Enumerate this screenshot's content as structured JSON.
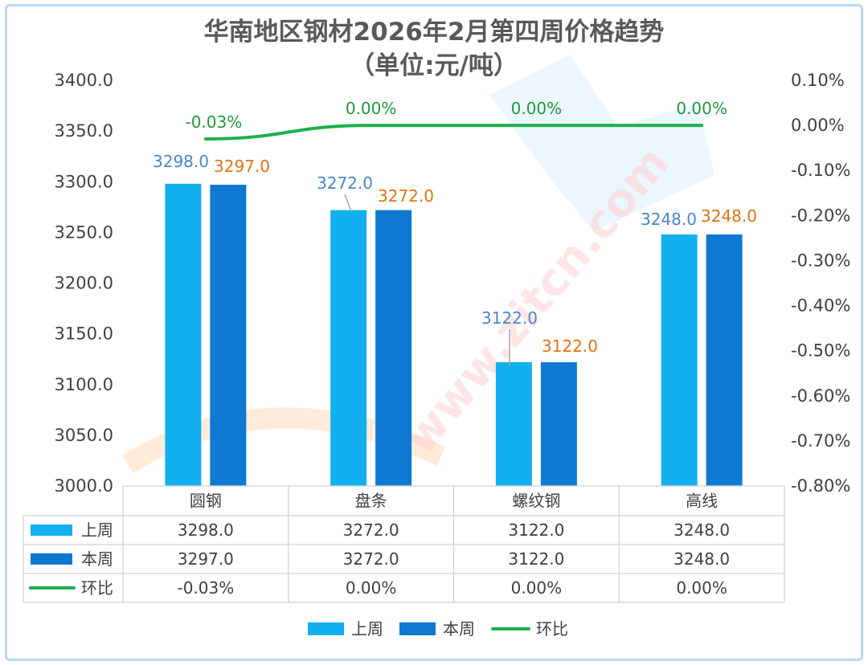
{
  "chart_data": {
    "type": "bar",
    "title": "华南地区钢材2026年2月第四周价格趋势",
    "subtitle": "（单位:元/吨）",
    "categories": [
      "圆钢",
      "盘条",
      "螺纹钢",
      "高线"
    ],
    "series": [
      {
        "name": "上周",
        "type": "bar",
        "axis": "left",
        "color": "#12b0ee",
        "values": [
          3298.0,
          3272.0,
          3122.0,
          3248.0
        ],
        "labels": [
          "3298.0",
          "3272.0",
          "3122.0",
          "3248.0"
        ]
      },
      {
        "name": "本周",
        "type": "bar",
        "axis": "left",
        "color": "#0f78d2",
        "values": [
          3297.0,
          3272.0,
          3122.0,
          3248.0
        ],
        "labels": [
          "3297.0",
          "3272.0",
          "3122.0",
          "3248.0"
        ]
      },
      {
        "name": "环比",
        "type": "line",
        "axis": "right",
        "color": "#1cb04a",
        "values": [
          -0.03,
          0.0,
          0.0,
          0.0
        ],
        "labels": [
          "-0.03%",
          "0.00%",
          "0.00%",
          "0.00%"
        ]
      }
    ],
    "y_left": {
      "min": 3000,
      "max": 3400,
      "ticks": [
        "3000.0",
        "3050.0",
        "3100.0",
        "3150.0",
        "3200.0",
        "3250.0",
        "3300.0",
        "3350.0",
        "3400.0"
      ]
    },
    "y_right": {
      "min": -0.8,
      "max": 0.1,
      "ticks": [
        "-0.80%",
        "-0.70%",
        "-0.60%",
        "-0.50%",
        "-0.40%",
        "-0.30%",
        "-0.20%",
        "-0.10%",
        "0.00%",
        "0.10%"
      ]
    },
    "data_table": true,
    "legend_position": "bottom",
    "watermark_text": "www.zitcn.com"
  }
}
